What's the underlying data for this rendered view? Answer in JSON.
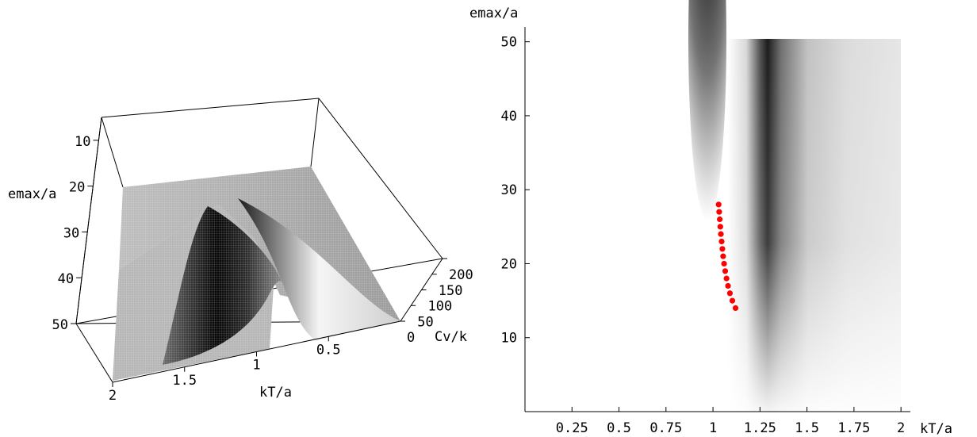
{
  "chart_data": [
    {
      "type": "surface",
      "xlabel": "kT/a",
      "ylabel": "emax/a",
      "zlabel": "Cv/k",
      "x_ticks": [
        "2",
        "1.5",
        "1",
        "0.5"
      ],
      "x_tick_values": [
        2,
        1.5,
        1,
        0.5
      ],
      "y_ticks": [
        "10",
        "20",
        "30",
        "40",
        "50"
      ],
      "y_tick_values": [
        10,
        20,
        30,
        40,
        50
      ],
      "z_ticks": [
        "0",
        "50",
        "100",
        "150",
        "200"
      ],
      "z_tick_values": [
        0,
        50,
        100,
        150,
        200
      ],
      "xlim": [
        0,
        2
      ],
      "ylim": [
        0,
        50
      ],
      "zlim": [
        0,
        200
      ],
      "peak": {
        "x": 1.05,
        "y": 50,
        "z": 150
      }
    },
    {
      "type": "heatmap",
      "xlabel": "kT/a",
      "ylabel": "emax/a",
      "x_ticks": [
        "0.25",
        "0.5",
        "0.75",
        "1",
        "1.25",
        "1.5",
        "1.75",
        "2"
      ],
      "x_tick_values": [
        0.25,
        0.5,
        0.75,
        1,
        1.25,
        1.5,
        1.75,
        2
      ],
      "y_ticks": [
        "10",
        "20",
        "30",
        "40",
        "50"
      ],
      "y_tick_values": [
        10,
        20,
        30,
        40,
        50
      ],
      "xlim": [
        0,
        2.05
      ],
      "ylim": [
        0,
        52
      ],
      "colors": {
        "low": "#ffffff",
        "high": "#000000",
        "points": "#ff0000"
      },
      "points": [
        {
          "x": 1.03,
          "y": 28
        },
        {
          "x": 1.033,
          "y": 27
        },
        {
          "x": 1.036,
          "y": 26
        },
        {
          "x": 1.039,
          "y": 25
        },
        {
          "x": 1.042,
          "y": 24
        },
        {
          "x": 1.046,
          "y": 23
        },
        {
          "x": 1.05,
          "y": 22
        },
        {
          "x": 1.054,
          "y": 21
        },
        {
          "x": 1.059,
          "y": 20
        },
        {
          "x": 1.065,
          "y": 19
        },
        {
          "x": 1.072,
          "y": 18
        },
        {
          "x": 1.08,
          "y": 17
        },
        {
          "x": 1.09,
          "y": 16
        },
        {
          "x": 1.103,
          "y": 15
        },
        {
          "x": 1.12,
          "y": 14
        }
      ]
    }
  ]
}
